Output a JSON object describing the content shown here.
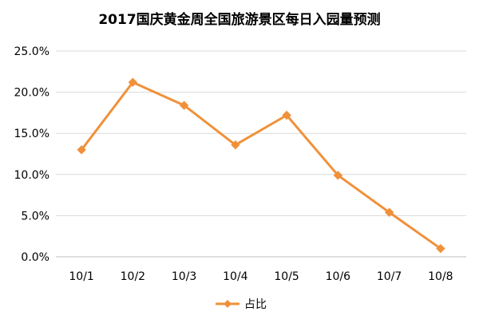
{
  "chart_data": {
    "type": "line",
    "title": "2017国庆黄金周全国旅游景区每日入园量预测",
    "xlabel": "",
    "ylabel": "",
    "categories": [
      "10/1",
      "10/2",
      "10/3",
      "10/4",
      "10/5",
      "10/6",
      "10/7",
      "10/8"
    ],
    "series": [
      {
        "name": "占比",
        "values": [
          13.0,
          21.2,
          18.4,
          13.6,
          17.2,
          9.9,
          5.4,
          1.0
        ],
        "color": "#F0913A"
      }
    ],
    "ylim": [
      0,
      25
    ],
    "yticks": [
      "0.0%",
      "5.0%",
      "10.0%",
      "15.0%",
      "20.0%",
      "25.0%"
    ],
    "grid": true,
    "legend": "bottom"
  }
}
